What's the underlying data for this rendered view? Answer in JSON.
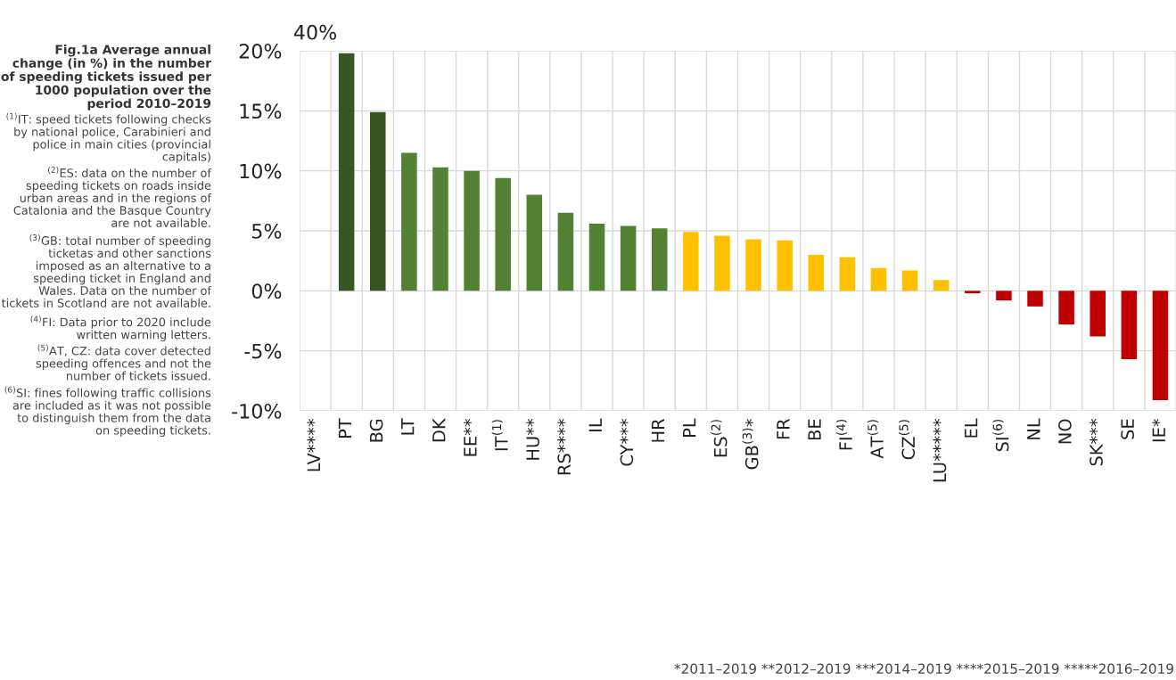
{
  "chart_data": {
    "type": "bar",
    "title": "Fig.1a Average annual change (in %) in the number of speeding tickets issued per 1000 population over the period 2010–2019",
    "categories": [
      "LV****",
      "PT",
      "BG",
      "LT",
      "DK",
      "EE**",
      "IT$^{(1)}$",
      "HU**",
      "RS****",
      "IL",
      "CY***",
      "HR",
      "PL",
      "ES$^{(2)}$",
      "GB$^{(3)}$*",
      "FR",
      "BE",
      "FI$^{(4)}$",
      "AT$^{(5)}$",
      "CZ$^{(5)}$",
      "LU*****",
      "EL",
      "SI$^{(6)}$",
      "NL",
      "NO",
      "SK***",
      "SE",
      "IE*"
    ],
    "values": [
      null,
      19.8,
      14.9,
      11.5,
      10.3,
      10.0,
      9.4,
      8.0,
      6.5,
      5.6,
      5.4,
      5.2,
      4.9,
      4.6,
      4.3,
      4.2,
      3.0,
      2.8,
      1.9,
      1.7,
      0.9,
      -0.2,
      -0.8,
      -1.3,
      -2.8,
      -3.8,
      -5.7,
      -9.1
    ],
    "colors": [
      "#375623",
      "#375623",
      "#375623",
      "#548235",
      "#548235",
      "#548235",
      "#548235",
      "#548235",
      "#548235",
      "#548235",
      "#548235",
      "#548235",
      "#ffc000",
      "#ffc000",
      "#ffc000",
      "#ffc000",
      "#ffc000",
      "#ffc000",
      "#ffc000",
      "#ffc000",
      "#ffc000",
      "#c00000",
      "#c00000",
      "#c00000",
      "#c00000",
      "#c00000",
      "#c00000",
      "#c00000"
    ],
    "ylim": [
      -10,
      20
    ],
    "yticks": [
      {
        "value": -10,
        "label": "-10%"
      },
      {
        "value": -5,
        "label": "-5%"
      },
      {
        "value": 0,
        "label": "0%"
      },
      {
        "value": 5,
        "label": "5%"
      },
      {
        "value": 10,
        "label": "10%"
      },
      {
        "value": 15,
        "label": "15%"
      },
      {
        "value": 20,
        "label": "20%"
      }
    ],
    "grid": true,
    "annotations": [
      "40%",
      "$^{(1)}$IT: speed tickets following checks by national police, Carabinieri and police in main cities (provincial capitals)",
      "$^{(2)}$ES: data on the number of speeding tickets on roads inside urban areas and in the regions of Catalonia and the Basque Country are not available.",
      "$^{(3)}$GB: total number of speeding ticketas and other sanctions imposed as an alternative to a speeding ticket in England and Wales. Data on the number of tickets in Scotland are not available.",
      "$^{(4)}$FI: Data prior to 2020 include written warning letters.",
      "$^{(5)}$AT, CZ: data cover detected speeding offences and not the number of tickets issued.",
      "$^{(6)}$SI: fines following traffic collisions are included as it was not possible to distinguish them from the data on speeding tickets.",
      "*2011–2019 **2012–2019 ***2014–2019 ****2015–2019 *****2016–2019"
    ]
  }
}
